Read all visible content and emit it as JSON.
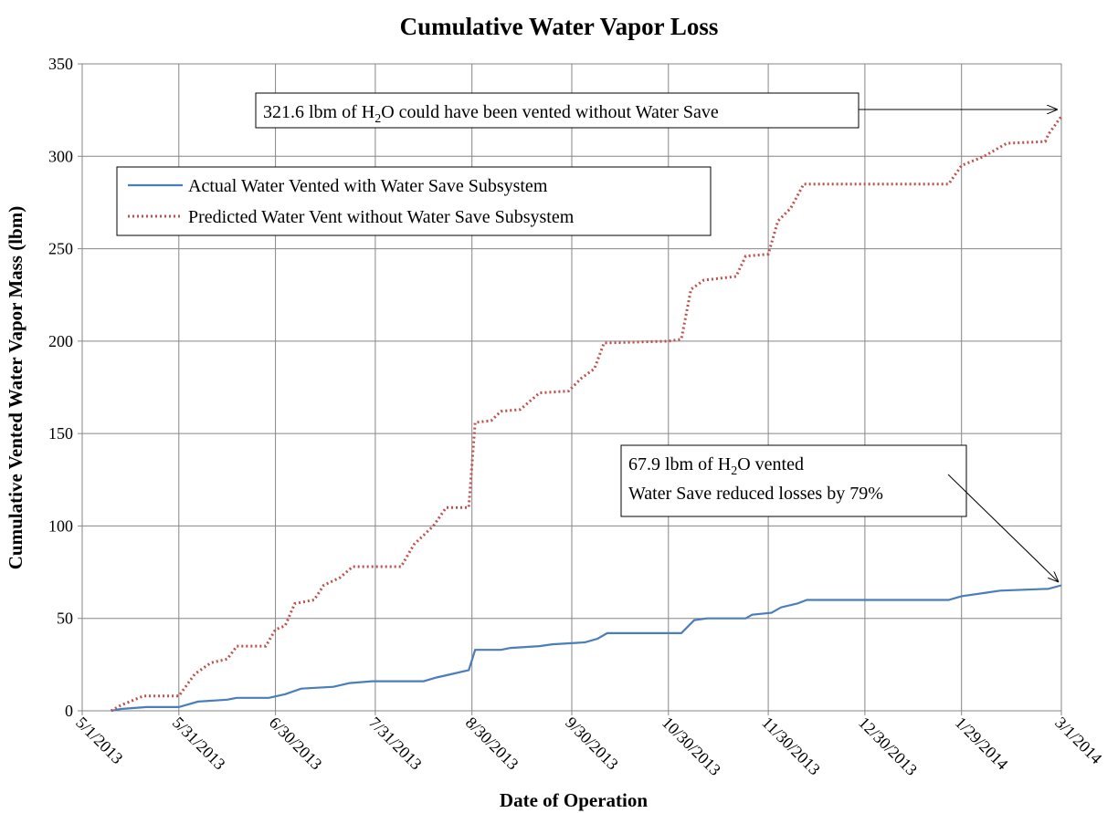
{
  "chart_data": {
    "type": "line",
    "title": "Cumulative Water Vapor Loss",
    "x_label": "Date of Operation",
    "y_label": "Cumulative Vented Water Vapor Mass (lbm)",
    "xlim": [
      "2013-05-01",
      "2014-03-01"
    ],
    "xticks": [
      {
        "value": "2013-05-01",
        "label": "5/1/2013"
      },
      {
        "value": "2013-05-31",
        "label": "5/31/2013"
      },
      {
        "value": "2013-06-30",
        "label": "6/30/2013"
      },
      {
        "value": "2013-07-31",
        "label": "7/31/2013"
      },
      {
        "value": "2013-08-30",
        "label": "8/30/2013"
      },
      {
        "value": "2013-09-30",
        "label": "9/30/2013"
      },
      {
        "value": "2013-10-30",
        "label": "10/30/2013"
      },
      {
        "value": "2013-11-30",
        "label": "11/30/2013"
      },
      {
        "value": "2013-12-30",
        "label": "12/30/2013"
      },
      {
        "value": "2014-01-29",
        "label": "1/29/2014"
      },
      {
        "value": "2014-03-01",
        "label": "3/1/2014"
      }
    ],
    "ylim": [
      0,
      350
    ],
    "yticks": [
      0,
      50,
      100,
      150,
      200,
      250,
      300,
      350
    ],
    "grid": true,
    "legend": "upper left",
    "series": [
      {
        "name": "Actual Water Vented with Water Save Subsystem",
        "color": "#4a7ebb",
        "style": "solid",
        "x": [
          "2013-05-10",
          "2013-05-13",
          "2013-05-21",
          "2013-05-31",
          "2013-06-06",
          "2013-06-15",
          "2013-06-18",
          "2013-06-28",
          "2013-07-03",
          "2013-07-08",
          "2013-07-18",
          "2013-07-23",
          "2013-07-30",
          "2013-08-15",
          "2013-08-19",
          "2013-08-24",
          "2013-08-29",
          "2013-08-31",
          "2013-09-08",
          "2013-09-11",
          "2013-09-20",
          "2013-09-24",
          "2013-10-04",
          "2013-10-08",
          "2013-10-11",
          "2013-11-03",
          "2013-11-07",
          "2013-11-11",
          "2013-11-23",
          "2013-11-25",
          "2013-12-01",
          "2013-12-04",
          "2013-12-09",
          "2013-12-12",
          "2014-01-25",
          "2014-01-29",
          "2014-02-06",
          "2014-02-10",
          "2014-02-25",
          "2014-03-01"
        ],
        "values": [
          0,
          1,
          2,
          2,
          5,
          6,
          7,
          7,
          9,
          12,
          13,
          15,
          16,
          16,
          18,
          20,
          22,
          33,
          33,
          34,
          35,
          36,
          37,
          39,
          42,
          42,
          49,
          50,
          50,
          52,
          53,
          56,
          58,
          60,
          60,
          62,
          64,
          65,
          66,
          67.9
        ]
      },
      {
        "name": "Predicted Water Vent without Water Save Subsystem",
        "color": "#c0504d",
        "style": "dotted",
        "x": [
          "2013-05-10",
          "2013-05-13",
          "2013-05-20",
          "2013-05-31",
          "2013-06-05",
          "2013-06-10",
          "2013-06-15",
          "2013-06-18",
          "2013-06-27",
          "2013-06-30",
          "2013-07-03",
          "2013-07-06",
          "2013-07-12",
          "2013-07-15",
          "2013-07-20",
          "2013-07-24",
          "2013-08-08",
          "2013-08-12",
          "2013-08-18",
          "2013-08-22",
          "2013-08-29",
          "2013-08-31",
          "2013-09-05",
          "2013-09-08",
          "2013-09-14",
          "2013-09-20",
          "2013-09-29",
          "2013-10-03",
          "2013-10-07",
          "2013-10-10",
          "2013-10-30",
          "2013-11-03",
          "2013-11-06",
          "2013-11-10",
          "2013-11-20",
          "2013-11-23",
          "2013-11-30",
          "2013-12-03",
          "2013-12-07",
          "2013-12-11",
          "2014-01-25",
          "2014-01-29",
          "2014-02-05",
          "2014-02-12",
          "2014-02-24",
          "2014-02-25",
          "2014-03-01"
        ],
        "values": [
          0,
          3,
          8,
          8,
          20,
          26,
          28,
          35,
          35,
          44,
          46,
          58,
          60,
          68,
          72,
          78,
          78,
          90,
          100,
          110,
          110,
          156,
          157,
          162,
          163,
          172,
          173,
          180,
          185,
          199,
          200,
          201,
          228,
          233,
          235,
          246,
          247,
          265,
          272,
          285,
          285,
          295,
          300,
          307,
          308,
          312,
          321.6
        ]
      }
    ],
    "annotations": [
      {
        "lines": [
          [
            "321.6 lbm of H",
            "2",
            "O could have been vented without Water Save"
          ]
        ]
      },
      {
        "lines": [
          [
            "67.9 lbm of H",
            "2",
            "O vented"
          ],
          [
            "Water Save reduced losses by 79%"
          ]
        ]
      }
    ]
  }
}
